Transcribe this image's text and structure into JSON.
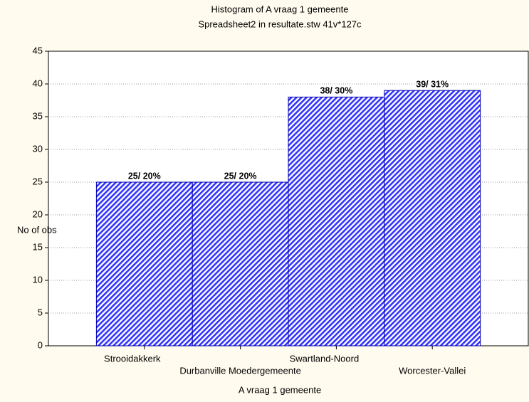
{
  "chart_data": {
    "type": "bar",
    "title": "Histogram of A vraag 1 gemeente",
    "subtitle": "Spreadsheet2 in resultate.stw 41v*127c",
    "x_label": "A vraag 1 gemeente",
    "y_label": "No of obs",
    "categories": [
      "Strooidakkerk",
      "Durbanville Moedergemeente",
      "Swartland-Noord",
      "Worcester-Vallei"
    ],
    "values": [
      25,
      25,
      38,
      39
    ],
    "value_labels": [
      "25/ 20%",
      "25/ 20%",
      "38/ 30%",
      "39/ 31%"
    ],
    "color": "#3333ff",
    "ylim": [
      0,
      45
    ],
    "yticks": [
      0,
      5,
      10,
      15,
      20,
      25,
      30,
      35,
      40,
      45
    ],
    "grid": true
  }
}
